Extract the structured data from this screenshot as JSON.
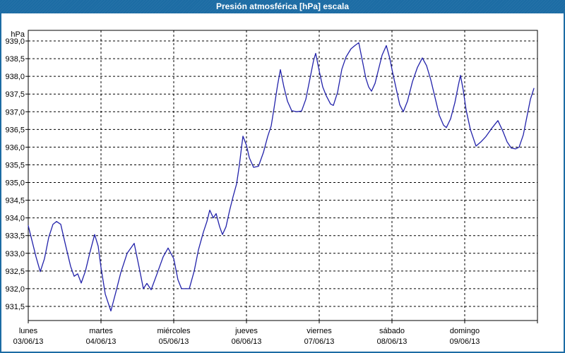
{
  "window": {
    "title": "Presión atmosférica [hPa] escala"
  },
  "colors": {
    "titlebar_bg": "#1C6CA4",
    "window_border": "#1C6CA4",
    "title_text": "#FFFFFF",
    "plot_bg": "#FFFFFF",
    "grid": "#000000",
    "axis": "#000000",
    "tick_text": "#000000",
    "line": "#2222AA"
  },
  "chart_data": {
    "type": "line",
    "title": "Presión atmosférica [hPa] escala",
    "unit_label": "hPa",
    "decimal_separator": ",",
    "grid": {
      "style": "dashed",
      "horizontal_step_hpa": 0.5,
      "vertical_step_days": 1
    },
    "axis_range": {
      "ymin_hpa": 931.1,
      "ymax_hpa": 939.3,
      "xmin_days": 0,
      "xmax_days": 7
    },
    "y_tick_labels": [
      "939,0",
      "938,5",
      "938,0",
      "937,5",
      "937,0",
      "936,5",
      "936,0",
      "935,5",
      "935,0",
      "934,5",
      "934,0",
      "933,5",
      "933,0",
      "932,5",
      "932,0",
      "931,5"
    ],
    "x_axis_days": [
      {
        "weekday": "lunes",
        "date": "03/06/13"
      },
      {
        "weekday": "martes",
        "date": "04/06/13"
      },
      {
        "weekday": "miércoles",
        "date": "05/06/13"
      },
      {
        "weekday": "jueves",
        "date": "06/06/13"
      },
      {
        "weekday": "viernes",
        "date": "07/06/13"
      },
      {
        "weekday": "sábado",
        "date": "08/06/13"
      },
      {
        "weekday": "domingo",
        "date": "09/06/13"
      }
    ],
    "series": [
      {
        "name": "presión atmosférica",
        "color": "#2222AA",
        "points_days_hpa": [
          [
            0.0,
            933.78
          ],
          [
            0.058,
            933.3
          ],
          [
            0.107,
            932.9
          ],
          [
            0.165,
            932.48
          ],
          [
            0.223,
            932.85
          ],
          [
            0.282,
            933.45
          ],
          [
            0.34,
            933.82
          ],
          [
            0.388,
            933.9
          ],
          [
            0.447,
            933.82
          ],
          [
            0.505,
            933.3
          ],
          [
            0.583,
            932.63
          ],
          [
            0.631,
            932.35
          ],
          [
            0.68,
            932.42
          ],
          [
            0.728,
            932.16
          ],
          [
            0.786,
            932.5
          ],
          [
            0.845,
            933.0
          ],
          [
            0.913,
            933.53
          ],
          [
            0.961,
            933.2
          ],
          [
            1.0,
            932.6
          ],
          [
            1.058,
            931.85
          ],
          [
            1.136,
            931.37
          ],
          [
            1.204,
            931.9
          ],
          [
            1.272,
            932.45
          ],
          [
            1.359,
            933.0
          ],
          [
            1.456,
            933.28
          ],
          [
            1.524,
            932.6
          ],
          [
            1.583,
            932.0
          ],
          [
            1.631,
            932.15
          ],
          [
            1.689,
            931.97
          ],
          [
            1.767,
            932.4
          ],
          [
            1.854,
            932.9
          ],
          [
            1.922,
            933.15
          ],
          [
            2.0,
            932.85
          ],
          [
            2.058,
            932.25
          ],
          [
            2.107,
            932.0
          ],
          [
            2.214,
            932.0
          ],
          [
            2.282,
            932.5
          ],
          [
            2.34,
            933.1
          ],
          [
            2.408,
            933.6
          ],
          [
            2.456,
            933.9
          ],
          [
            2.495,
            934.22
          ],
          [
            2.544,
            934.0
          ],
          [
            2.583,
            934.12
          ],
          [
            2.631,
            933.75
          ],
          [
            2.67,
            933.53
          ],
          [
            2.718,
            933.75
          ],
          [
            2.767,
            934.2
          ],
          [
            2.816,
            934.6
          ],
          [
            2.864,
            934.96
          ],
          [
            2.903,
            935.5
          ],
          [
            2.932,
            936.0
          ],
          [
            2.951,
            936.31
          ],
          [
            3.0,
            936.05
          ],
          [
            3.039,
            935.7
          ],
          [
            3.097,
            935.43
          ],
          [
            3.165,
            935.46
          ],
          [
            3.233,
            935.85
          ],
          [
            3.291,
            936.3
          ],
          [
            3.34,
            936.6
          ],
          [
            3.379,
            937.1
          ],
          [
            3.427,
            937.75
          ],
          [
            3.466,
            938.19
          ],
          [
            3.515,
            937.7
          ],
          [
            3.563,
            937.3
          ],
          [
            3.621,
            937.03
          ],
          [
            3.689,
            937.0
          ],
          [
            3.757,
            937.02
          ],
          [
            3.816,
            937.35
          ],
          [
            3.874,
            937.95
          ],
          [
            3.922,
            938.45
          ],
          [
            3.951,
            938.65
          ],
          [
            4.0,
            938.15
          ],
          [
            4.049,
            937.7
          ],
          [
            4.097,
            937.45
          ],
          [
            4.155,
            937.22
          ],
          [
            4.194,
            937.18
          ],
          [
            4.252,
            937.55
          ],
          [
            4.311,
            938.2
          ],
          [
            4.369,
            938.55
          ],
          [
            4.437,
            938.78
          ],
          [
            4.495,
            938.88
          ],
          [
            4.544,
            938.95
          ],
          [
            4.592,
            938.45
          ],
          [
            4.641,
            937.95
          ],
          [
            4.68,
            937.7
          ],
          [
            4.718,
            937.58
          ],
          [
            4.767,
            937.8
          ],
          [
            4.816,
            938.2
          ],
          [
            4.864,
            938.6
          ],
          [
            4.922,
            938.87
          ],
          [
            4.971,
            938.5
          ],
          [
            5.01,
            938.1
          ],
          [
            5.058,
            937.65
          ],
          [
            5.107,
            937.2
          ],
          [
            5.155,
            937.0
          ],
          [
            5.214,
            937.3
          ],
          [
            5.282,
            937.85
          ],
          [
            5.35,
            938.25
          ],
          [
            5.417,
            938.52
          ],
          [
            5.476,
            938.3
          ],
          [
            5.534,
            937.9
          ],
          [
            5.592,
            937.4
          ],
          [
            5.65,
            936.9
          ],
          [
            5.709,
            936.62
          ],
          [
            5.748,
            936.55
          ],
          [
            5.806,
            936.8
          ],
          [
            5.864,
            937.25
          ],
          [
            5.913,
            937.75
          ],
          [
            5.942,
            938.03
          ],
          [
            5.981,
            937.6
          ],
          [
            6.019,
            937.05
          ],
          [
            6.078,
            936.5
          ],
          [
            6.155,
            936.03
          ],
          [
            6.223,
            936.15
          ],
          [
            6.291,
            936.3
          ],
          [
            6.379,
            936.55
          ],
          [
            6.456,
            936.75
          ],
          [
            6.524,
            936.45
          ],
          [
            6.583,
            936.15
          ],
          [
            6.641,
            935.97
          ],
          [
            6.699,
            935.95
          ],
          [
            6.748,
            936.0
          ],
          [
            6.806,
            936.35
          ],
          [
            6.854,
            936.85
          ],
          [
            6.903,
            937.35
          ],
          [
            6.951,
            937.66
          ]
        ]
      }
    ]
  }
}
